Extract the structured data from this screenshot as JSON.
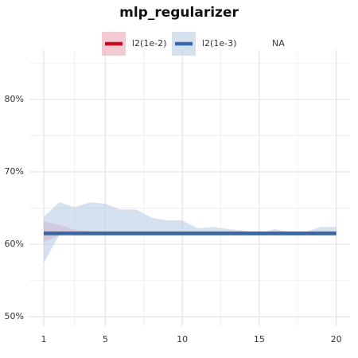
{
  "chart_data": {
    "type": "line",
    "title": "mlp_regularizer",
    "x": [
      1,
      2,
      3,
      4,
      5,
      6,
      7,
      8,
      9,
      10,
      11,
      12,
      13,
      14,
      15,
      16,
      17,
      18,
      19,
      20
    ],
    "xlim": [
      0.07,
      20.9
    ],
    "xticks": [
      1,
      5,
      10,
      15,
      20
    ],
    "xminorticks": [
      3,
      7.5,
      12.5,
      17.5
    ],
    "ylim": [
      48.7,
      86.8
    ],
    "yticks": [
      {
        "value": 50,
        "label": "50%"
      },
      {
        "value": 60,
        "label": "60%"
      },
      {
        "value": 70,
        "label": "70%"
      },
      {
        "value": 80,
        "label": "80%"
      }
    ],
    "yminorticks": [
      55,
      65,
      75,
      85
    ],
    "grid": true,
    "legend": "top",
    "series": [
      {
        "name": "l2(1e-2)",
        "color": "#cc0a22",
        "band_color": "#e7a3ad",
        "values": [
          61.5,
          61.5,
          61.5,
          61.5,
          61.5,
          61.5,
          61.5,
          61.5,
          61.5,
          61.5,
          61.5,
          61.5,
          61.5,
          61.5,
          61.5,
          61.5,
          61.5,
          61.5,
          61.5,
          61.5
        ],
        "upper": [
          63.2,
          62.7,
          62.0,
          61.8,
          61.7,
          61.7,
          61.7,
          61.7,
          61.7,
          61.7,
          61.7,
          61.7,
          61.7,
          61.7,
          61.7,
          61.7,
          61.7,
          61.7,
          61.7,
          61.7
        ],
        "lower": [
          60.3,
          61.2,
          61.4,
          61.4,
          61.4,
          61.4,
          61.4,
          61.4,
          61.4,
          61.4,
          61.4,
          61.4,
          61.4,
          61.4,
          61.4,
          61.4,
          61.4,
          61.4,
          61.4,
          61.4
        ]
      },
      {
        "name": "l2(1e-3)",
        "color": "#3a67a6",
        "band_color": "#b5c9e3",
        "values": [
          61.5,
          61.5,
          61.5,
          61.5,
          61.5,
          61.5,
          61.5,
          61.5,
          61.5,
          61.5,
          61.5,
          61.5,
          61.5,
          61.5,
          61.5,
          61.5,
          61.5,
          61.5,
          61.5,
          61.5
        ],
        "upper": [
          63.8,
          65.8,
          65.1,
          65.8,
          65.6,
          64.8,
          64.8,
          63.7,
          63.3,
          63.3,
          62.2,
          62.4,
          62.1,
          61.9,
          61.5,
          62.1,
          61.7,
          61.7,
          62.4,
          62.4
        ],
        "lower": [
          57.4,
          61.3,
          61.2,
          61.2,
          61.2,
          61.2,
          61.2,
          61.2,
          61.2,
          61.2,
          61.2,
          61.2,
          61.2,
          61.2,
          61.2,
          61.2,
          61.2,
          61.2,
          61.2,
          61.2
        ]
      },
      {
        "name": "NA",
        "color": null,
        "values": [
          null,
          null,
          null,
          null,
          null,
          null,
          null,
          null,
          null,
          null,
          null,
          null,
          null,
          null,
          null,
          null,
          null,
          null,
          null,
          null
        ]
      }
    ]
  }
}
